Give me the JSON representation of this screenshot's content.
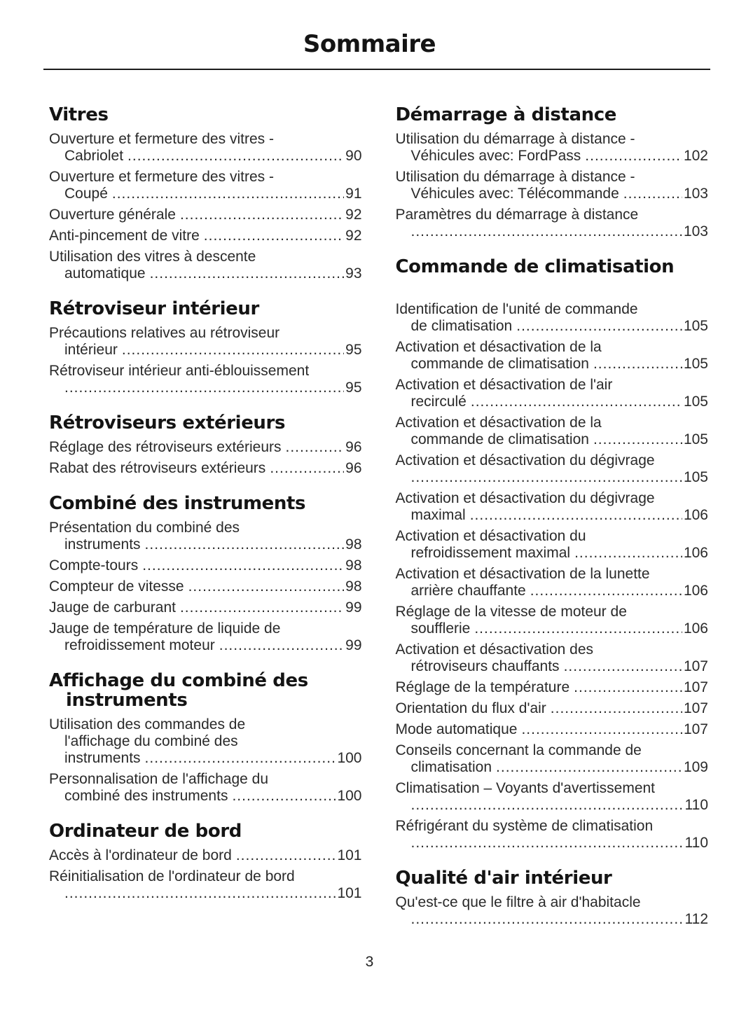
{
  "page": {
    "title": "Sommaire",
    "page_number": "3"
  },
  "colors": {
    "heading_text": "#141414",
    "body_text": "#2a2a2a",
    "rule": "#1c1c1c",
    "background": "#ffffff"
  },
  "columns": [
    {
      "sections": [
        {
          "title_lines": [
            "Vitres"
          ],
          "entries": [
            {
              "lines": [
                "Ouverture et fermeture des vitres -",
                "Cabriolet"
              ],
              "page": "90"
            },
            {
              "lines": [
                "Ouverture et fermeture des vitres -",
                "Coupé"
              ],
              "page": "91"
            },
            {
              "lines": [
                "Ouverture générale"
              ],
              "page": "92"
            },
            {
              "lines": [
                "Anti-pincement de vitre"
              ],
              "page": "92"
            },
            {
              "lines": [
                "Utilisation des vitres à descente",
                "automatique"
              ],
              "page": "93"
            }
          ]
        },
        {
          "title_lines": [
            "Rétroviseur intérieur"
          ],
          "entries": [
            {
              "lines": [
                "Précautions relatives au rétroviseur",
                "intérieur"
              ],
              "page": "95"
            },
            {
              "lines": [
                "Rétroviseur intérieur anti-éblouissement",
                ""
              ],
              "page": "95"
            }
          ]
        },
        {
          "title_lines": [
            "Rétroviseurs extérieurs"
          ],
          "entries": [
            {
              "lines": [
                "Réglage des rétroviseurs extérieurs"
              ],
              "page": "96"
            },
            {
              "lines": [
                "Rabat des rétroviseurs extérieurs"
              ],
              "page": "96"
            }
          ]
        },
        {
          "title_lines": [
            "Combiné des instruments"
          ],
          "entries": [
            {
              "lines": [
                "Présentation du combiné des",
                "instruments"
              ],
              "page": "98"
            },
            {
              "lines": [
                "Compte-tours"
              ],
              "page": "98"
            },
            {
              "lines": [
                "Compteur de vitesse"
              ],
              "page": "98"
            },
            {
              "lines": [
                "Jauge de carburant"
              ],
              "page": "99"
            },
            {
              "lines": [
                "Jauge de température de liquide de",
                "refroidissement moteur"
              ],
              "page": "99"
            }
          ]
        },
        {
          "title_lines": [
            "Affichage du combiné des",
            "instruments"
          ],
          "entries": [
            {
              "lines": [
                "Utilisation des commandes de",
                "l'affichage du combiné des",
                "instruments"
              ],
              "page": "100"
            },
            {
              "lines": [
                "Personnalisation de l'affichage du",
                "combiné des instruments"
              ],
              "page": "100"
            }
          ]
        },
        {
          "title_lines": [
            "Ordinateur de bord"
          ],
          "entries": [
            {
              "lines": [
                "Accès à l'ordinateur de bord"
              ],
              "page": "101"
            },
            {
              "lines": [
                "Réinitialisation de l'ordinateur de bord",
                ""
              ],
              "page": "101"
            }
          ]
        }
      ]
    },
    {
      "sections": [
        {
          "title_lines": [
            "Démarrage à distance"
          ],
          "entries": [
            {
              "lines": [
                "Utilisation du démarrage à distance -",
                "Véhicules avec: FordPass"
              ],
              "page": "102"
            },
            {
              "lines": [
                "Utilisation du démarrage à distance -",
                "Véhicules avec: Télécommande"
              ],
              "page": "103"
            },
            {
              "lines": [
                "Paramètres du démarrage à distance",
                ""
              ],
              "page": "103"
            }
          ]
        },
        {
          "title_lines": [
            "Commande de climatisation"
          ],
          "gap_after_title": true,
          "entries": [
            {
              "lines": [
                "Identification de l'unité de commande",
                "de climatisation"
              ],
              "page": "105"
            },
            {
              "lines": [
                "Activation et désactivation de la",
                "commande de climatisation"
              ],
              "page": "105"
            },
            {
              "lines": [
                "Activation et désactivation de l'air",
                "recirculé"
              ],
              "page": "105"
            },
            {
              "lines": [
                "Activation et désactivation de la",
                "commande de climatisation"
              ],
              "page": "105"
            },
            {
              "lines": [
                "Activation et désactivation du dégivrage",
                ""
              ],
              "page": "105"
            },
            {
              "lines": [
                "Activation et désactivation du dégivrage",
                "maximal"
              ],
              "page": "106"
            },
            {
              "lines": [
                "Activation et désactivation du",
                "refroidissement maximal"
              ],
              "page": "106"
            },
            {
              "lines": [
                "Activation et désactivation de la lunette",
                "arrière chauffante"
              ],
              "page": "106"
            },
            {
              "lines": [
                "Réglage de la vitesse de moteur de",
                "soufflerie"
              ],
              "page": "106"
            },
            {
              "lines": [
                "Activation et désactivation des",
                "rétroviseurs chauffants"
              ],
              "page": "107"
            },
            {
              "lines": [
                "Réglage de la température"
              ],
              "page": "107"
            },
            {
              "lines": [
                "Orientation du flux d'air"
              ],
              "page": "107"
            },
            {
              "lines": [
                "Mode automatique"
              ],
              "page": "107"
            },
            {
              "lines": [
                "Conseils concernant la commande de",
                "climatisation"
              ],
              "page": "109"
            },
            {
              "lines": [
                "Climatisation – Voyants d'avertissement",
                ""
              ],
              "page": "110"
            },
            {
              "lines": [
                "Réfrigérant du système de climatisation",
                ""
              ],
              "page": "110"
            }
          ]
        },
        {
          "title_lines": [
            "Qualité d'air intérieur"
          ],
          "entries": [
            {
              "lines": [
                "Qu'est-ce que le filtre à air d'habitacle",
                ""
              ],
              "page": "112"
            }
          ]
        }
      ]
    }
  ]
}
